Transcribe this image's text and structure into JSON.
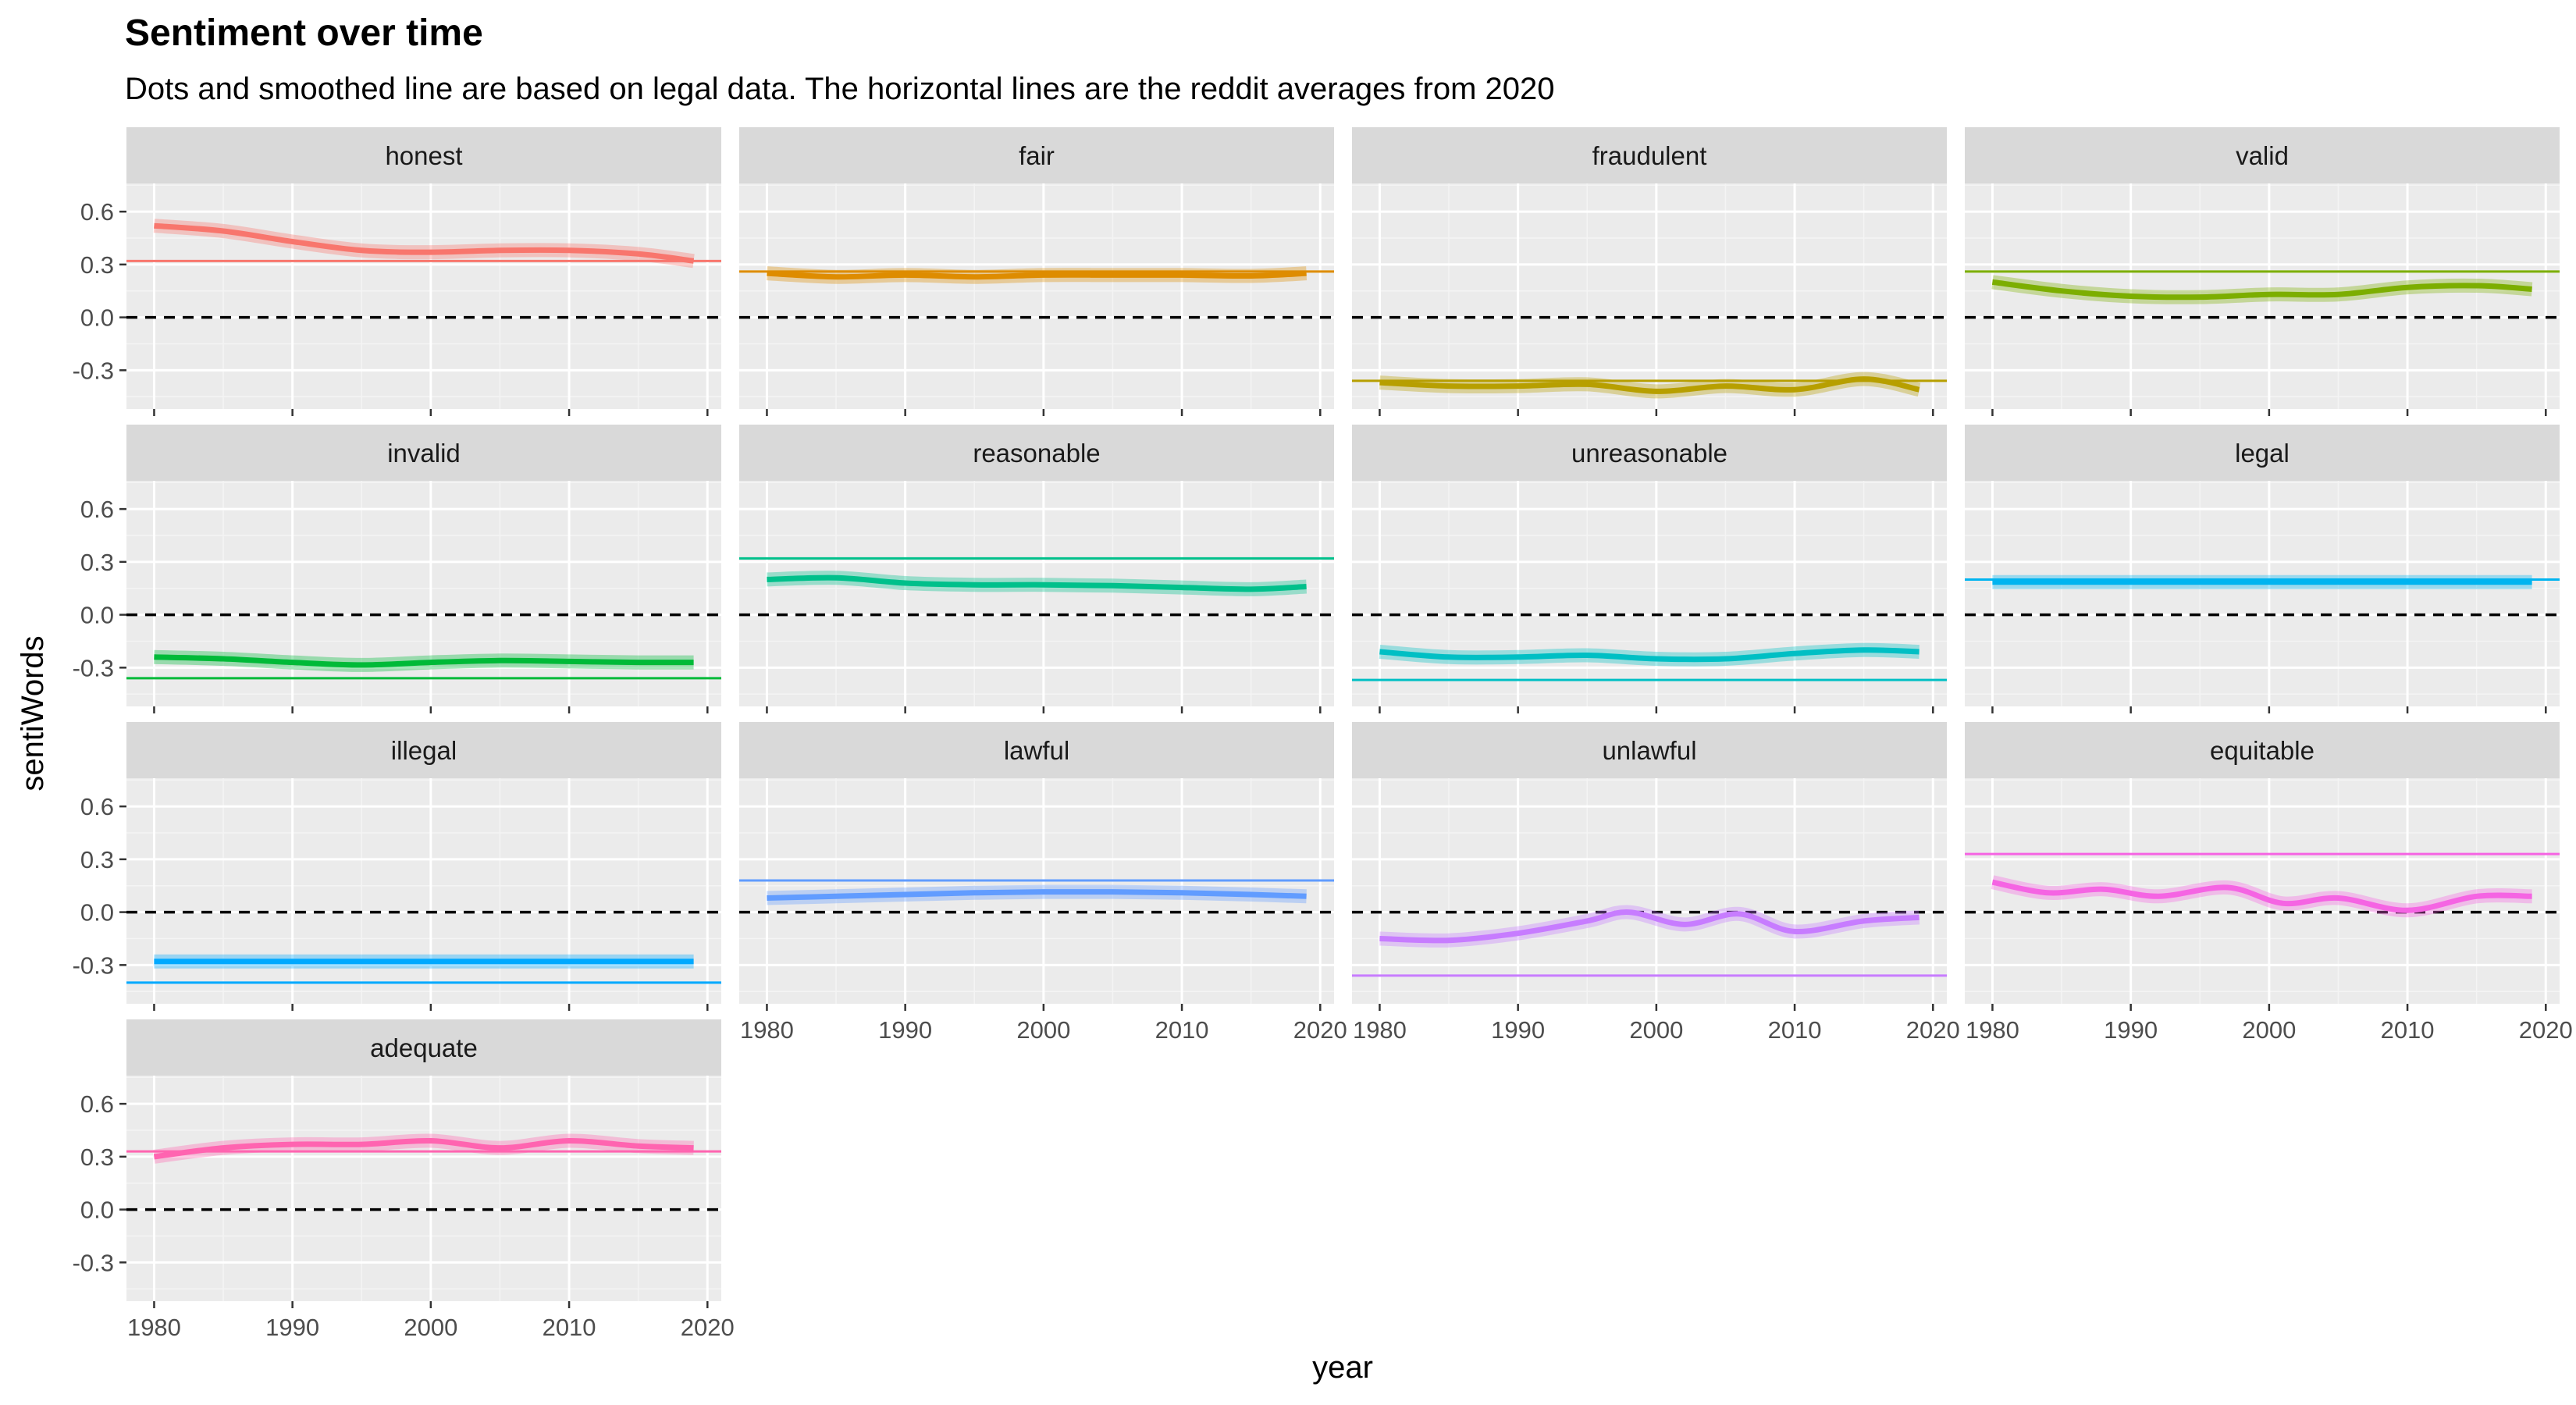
{
  "chart_data": {
    "type": "line",
    "title": "Sentiment over time",
    "subtitle": "Dots and smoothed line are based on legal data. The horizontal lines are the reddit averages from 2020",
    "xlabel": "year",
    "ylabel": "sentiWords",
    "xlim": [
      1978,
      2021
    ],
    "ylim": [
      -0.52,
      0.76
    ],
    "x_ticks": [
      1980,
      1990,
      2000,
      2010,
      2020
    ],
    "y_ticks": [
      -0.3,
      0.0,
      0.3,
      0.6
    ],
    "y_tick_labels": [
      "-0.3",
      "0.0",
      "0.3",
      "0.6"
    ],
    "zero_line": {
      "y": 0.0,
      "style": "dashed",
      "color": "#000000"
    },
    "grid": true,
    "background": "#ebebeb",
    "strip_color": "#d9d9d9",
    "legend": "none",
    "ncol": 4,
    "panels": [
      {
        "label": "honest",
        "color": "#F8766D",
        "reddit_avg": 0.32,
        "x": [
          1980,
          1985,
          1990,
          1995,
          2000,
          2005,
          2010,
          2015,
          2019
        ],
        "y": [
          0.52,
          0.49,
          0.43,
          0.38,
          0.37,
          0.38,
          0.38,
          0.36,
          0.32
        ]
      },
      {
        "label": "fair",
        "color": "#DE8C00",
        "reddit_avg": 0.26,
        "x": [
          1980,
          1985,
          1990,
          1995,
          2000,
          2005,
          2010,
          2015,
          2019
        ],
        "y": [
          0.25,
          0.23,
          0.24,
          0.23,
          0.24,
          0.24,
          0.24,
          0.235,
          0.25
        ]
      },
      {
        "label": "fraudulent",
        "color": "#B79F00",
        "reddit_avg": -0.36,
        "x": [
          1980,
          1985,
          1990,
          1995,
          2000,
          2005,
          2010,
          2015,
          2019
        ],
        "y": [
          -0.37,
          -0.39,
          -0.39,
          -0.38,
          -0.42,
          -0.39,
          -0.41,
          -0.35,
          -0.41
        ]
      },
      {
        "label": "valid",
        "color": "#7CAE00",
        "reddit_avg": 0.26,
        "x": [
          1980,
          1985,
          1990,
          1995,
          2000,
          2005,
          2010,
          2015,
          2019
        ],
        "y": [
          0.2,
          0.15,
          0.12,
          0.115,
          0.13,
          0.13,
          0.17,
          0.18,
          0.16
        ]
      },
      {
        "label": "invalid",
        "color": "#00BA38",
        "reddit_avg": -0.36,
        "x": [
          1980,
          1985,
          1990,
          1995,
          2000,
          2005,
          2010,
          2015,
          2019
        ],
        "y": [
          -0.24,
          -0.25,
          -0.27,
          -0.285,
          -0.27,
          -0.26,
          -0.265,
          -0.27,
          -0.27
        ]
      },
      {
        "label": "reasonable",
        "color": "#00C08B",
        "reddit_avg": 0.32,
        "x": [
          1980,
          1985,
          1990,
          1995,
          2000,
          2005,
          2010,
          2015,
          2019
        ],
        "y": [
          0.2,
          0.21,
          0.18,
          0.17,
          0.17,
          0.165,
          0.155,
          0.145,
          0.16
        ]
      },
      {
        "label": "unreasonable",
        "color": "#00BFC4",
        "reddit_avg": -0.37,
        "x": [
          1980,
          1985,
          1990,
          1995,
          2000,
          2005,
          2010,
          2015,
          2019
        ],
        "y": [
          -0.21,
          -0.24,
          -0.24,
          -0.23,
          -0.25,
          -0.25,
          -0.22,
          -0.2,
          -0.21
        ]
      },
      {
        "label": "legal",
        "color": "#00B4F0",
        "reddit_avg": 0.2,
        "x": [
          1980,
          1985,
          1990,
          1995,
          2000,
          2005,
          2010,
          2015,
          2019
        ],
        "y": [
          0.185,
          0.185,
          0.185,
          0.185,
          0.185,
          0.185,
          0.185,
          0.185,
          0.185
        ]
      },
      {
        "label": "illegal",
        "color": "#00A9FF",
        "reddit_avg": -0.4,
        "x": [
          1980,
          1985,
          1990,
          1995,
          2000,
          2005,
          2010,
          2015,
          2019
        ],
        "y": [
          -0.28,
          -0.28,
          -0.28,
          -0.28,
          -0.28,
          -0.28,
          -0.28,
          -0.28,
          -0.28
        ]
      },
      {
        "label": "lawful",
        "color": "#619CFF",
        "reddit_avg": 0.18,
        "x": [
          1980,
          1985,
          1990,
          1995,
          2000,
          2005,
          2010,
          2015,
          2019
        ],
        "y": [
          0.08,
          0.09,
          0.1,
          0.11,
          0.115,
          0.115,
          0.11,
          0.1,
          0.09
        ]
      },
      {
        "label": "unlawful",
        "color": "#C77CFF",
        "reddit_avg": -0.36,
        "x": [
          1980,
          1985,
          1990,
          1995,
          1998,
          2002,
          2006,
          2010,
          2015,
          2019
        ],
        "y": [
          -0.15,
          -0.16,
          -0.12,
          -0.05,
          0.0,
          -0.07,
          -0.01,
          -0.11,
          -0.05,
          -0.03
        ]
      },
      {
        "label": "equitable",
        "color": "#F564E3",
        "reddit_avg": 0.33,
        "x": [
          1980,
          1984,
          1988,
          1992,
          1997,
          2001,
          2005,
          2010,
          2015,
          2019
        ],
        "y": [
          0.17,
          0.11,
          0.13,
          0.09,
          0.14,
          0.05,
          0.08,
          0.01,
          0.09,
          0.09
        ]
      },
      {
        "label": "adequate",
        "color": "#FF64B0",
        "reddit_avg": 0.33,
        "x": [
          1980,
          1985,
          1990,
          1995,
          2000,
          2005,
          2010,
          2015,
          2019
        ],
        "y": [
          0.3,
          0.35,
          0.37,
          0.37,
          0.39,
          0.35,
          0.39,
          0.36,
          0.35
        ]
      }
    ]
  }
}
